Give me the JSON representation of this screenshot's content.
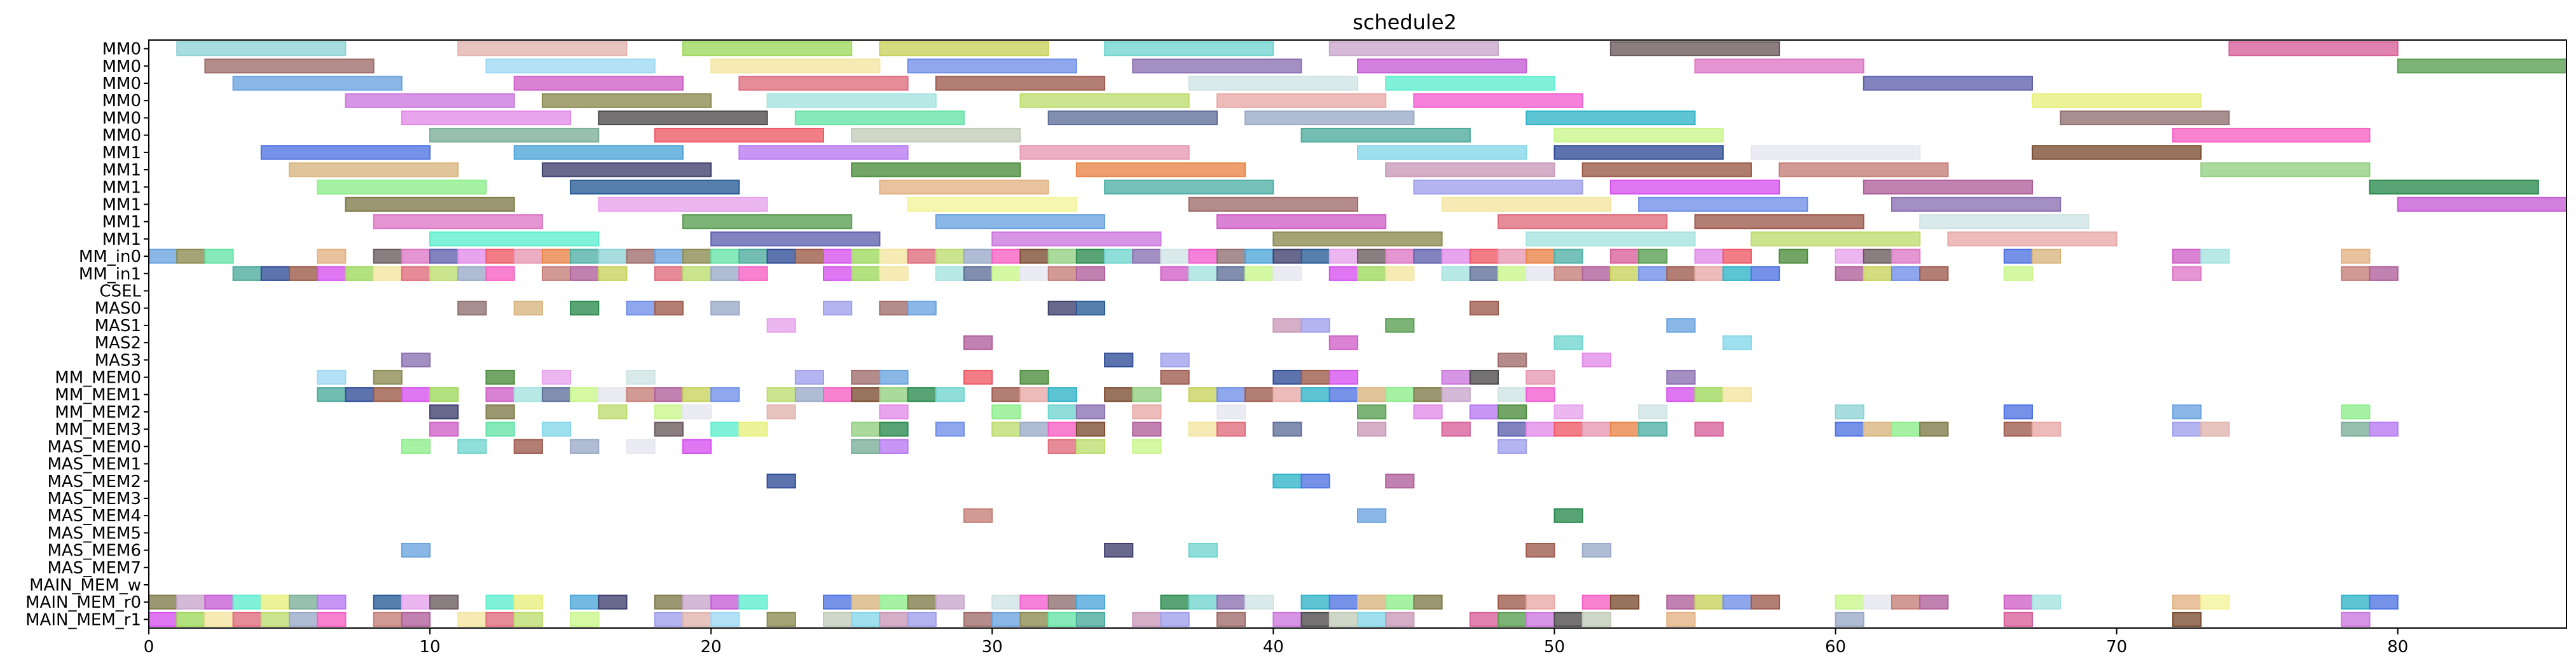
{
  "chart_data": {
    "type": "gantt",
    "title": "schedule2",
    "xlim": [
      0,
      86
    ],
    "xticks": [
      0,
      10,
      20,
      30,
      40,
      50,
      60,
      70,
      80
    ],
    "grid": false,
    "rows": [
      "MM0",
      "MM0",
      "MM0",
      "MM0",
      "MM0",
      "MM0",
      "MM1",
      "MM1",
      "MM1",
      "MM1",
      "MM1",
      "MM1",
      "MM_in0",
      "MM_in1",
      "CSEL",
      "MAS0",
      "MAS1",
      "MAS2",
      "MAS3",
      "MM_MEM0",
      "MM_MEM1",
      "MM_MEM2",
      "MM_MEM3",
      "MAS_MEM0",
      "MAS_MEM1",
      "MAS_MEM2",
      "MAS_MEM3",
      "MAS_MEM4",
      "MAS_MEM5",
      "MAS_MEM6",
      "MAS_MEM7",
      "MAIN_MEM_w",
      "MAIN_MEM_r0",
      "MAIN_MEM_r1"
    ],
    "palette": [
      "#8fd3d6",
      "#e2b4ae",
      "#9fd95c",
      "#c7d25b",
      "#6fd5cf",
      "#c9a7cc",
      "#6a5a5e",
      "#d8609a",
      "#9e6c6a",
      "#9dd8f2",
      "#f4e6a0",
      "#6f8ee8",
      "#8a6fb2",
      "#c65bd6",
      "#dd77c5",
      "#5a9e52",
      "#6aa3df",
      "#d05fc6",
      "#df6b7c",
      "#9e5b4e",
      "#cfe3e3",
      "#5eeecf",
      "#5e61ad",
      "#cc77de",
      "#8b8b51",
      "#a5e3e0",
      "#bddc6e",
      "#e8a9a6",
      "#f25dd0",
      "#e8f07c",
      "#e18ae8",
      "#4d4a4b",
      "#64e3a6",
      "#5e6e98",
      "#9aa9c6",
      "#2fb4c8",
      "#8f6f6f",
      "#7aae98",
      "#ef5865",
      "#c2ccb9",
      "#4caa9c",
      "#c8f68b",
      "#f75fc3",
      "#4e73e2",
      "#4da5d8",
      "#b778f2",
      "#e797b2",
      "#84d7ea",
      "#2e4b96",
      "#e6e6f0",
      "#7b4c2f",
      "#d9b57d",
      "#3e3f6c",
      "#4b8d3b",
      "#e88447",
      "#c998b8",
      "#9a5947",
      "#c47e76",
      "#92cf80",
      "#8dee8a",
      "#285b95",
      "#e3b283",
      "#4fb0a5",
      "#9f9fec",
      "#d651ee",
      "#b05f9b",
      "#2a8b4e",
      "#7f7a48",
      "#e7a2ec",
      "#f3f49a"
    ],
    "bars": [
      [
        0,
        1,
        7,
        0
      ],
      [
        0,
        11,
        17,
        1
      ],
      [
        0,
        19,
        25,
        2
      ],
      [
        0,
        26,
        32,
        3
      ],
      [
        0,
        34,
        40,
        4
      ],
      [
        0,
        42,
        48,
        5
      ],
      [
        0,
        52,
        58,
        6
      ],
      [
        0,
        74,
        80,
        7
      ],
      [
        1,
        2,
        8,
        8
      ],
      [
        1,
        12,
        18,
        9
      ],
      [
        1,
        20,
        26,
        10
      ],
      [
        1,
        27,
        33,
        11
      ],
      [
        1,
        35,
        41,
        12
      ],
      [
        1,
        43,
        49,
        13
      ],
      [
        1,
        55,
        61,
        14
      ],
      [
        1,
        80,
        86,
        15
      ],
      [
        2,
        3,
        9,
        16
      ],
      [
        2,
        13,
        19,
        17
      ],
      [
        2,
        21,
        27,
        18
      ],
      [
        2,
        28,
        34,
        19
      ],
      [
        2,
        37,
        43,
        20
      ],
      [
        2,
        44,
        50,
        21
      ],
      [
        2,
        61,
        67,
        22
      ],
      [
        3,
        7,
        13,
        23
      ],
      [
        3,
        14,
        20,
        24
      ],
      [
        3,
        22,
        28,
        25
      ],
      [
        3,
        31,
        37,
        26
      ],
      [
        3,
        38,
        44,
        27
      ],
      [
        3,
        45,
        51,
        28
      ],
      [
        3,
        67,
        73,
        29
      ],
      [
        4,
        9,
        15,
        30
      ],
      [
        4,
        16,
        22,
        31
      ],
      [
        4,
        23,
        29,
        32
      ],
      [
        4,
        32,
        38,
        33
      ],
      [
        4,
        39,
        45,
        34
      ],
      [
        4,
        49,
        55,
        35
      ],
      [
        4,
        68,
        74,
        36
      ],
      [
        5,
        10,
        16,
        37
      ],
      [
        5,
        18,
        24,
        38
      ],
      [
        5,
        25,
        31,
        39
      ],
      [
        5,
        41,
        47,
        40
      ],
      [
        5,
        50,
        56,
        41
      ],
      [
        5,
        72,
        79,
        42
      ],
      [
        6,
        4,
        10,
        43
      ],
      [
        6,
        13,
        19,
        44
      ],
      [
        6,
        21,
        27,
        45
      ],
      [
        6,
        31,
        37,
        46
      ],
      [
        6,
        43,
        49,
        47
      ],
      [
        6,
        50,
        56,
        48
      ],
      [
        6,
        57,
        63,
        49
      ],
      [
        6,
        67,
        73,
        50
      ],
      [
        7,
        5,
        11,
        51
      ],
      [
        7,
        14,
        20,
        52
      ],
      [
        7,
        25,
        31,
        53
      ],
      [
        7,
        33,
        39,
        54
      ],
      [
        7,
        44,
        50,
        55
      ],
      [
        7,
        51,
        57,
        56
      ],
      [
        7,
        58,
        64,
        57
      ],
      [
        7,
        73,
        79,
        58
      ],
      [
        8,
        6,
        12,
        59
      ],
      [
        8,
        15,
        21,
        60
      ],
      [
        8,
        26,
        32,
        61
      ],
      [
        8,
        34,
        40,
        62
      ],
      [
        8,
        45,
        51,
        63
      ],
      [
        8,
        52,
        58,
        64
      ],
      [
        8,
        61,
        67,
        65
      ],
      [
        8,
        79,
        85,
        66
      ],
      [
        9,
        7,
        13,
        67
      ],
      [
        9,
        16,
        22,
        68
      ],
      [
        9,
        27,
        33,
        69
      ],
      [
        9,
        37,
        43,
        8
      ],
      [
        9,
        46,
        52,
        10
      ],
      [
        9,
        53,
        59,
        11
      ],
      [
        9,
        62,
        68,
        12
      ],
      [
        9,
        80,
        86,
        13
      ],
      [
        10,
        8,
        14,
        14
      ],
      [
        10,
        19,
        25,
        15
      ],
      [
        10,
        28,
        34,
        16
      ],
      [
        10,
        38,
        44,
        17
      ],
      [
        10,
        48,
        54,
        18
      ],
      [
        10,
        55,
        61,
        19
      ],
      [
        10,
        63,
        69,
        20
      ],
      [
        11,
        10,
        16,
        21
      ],
      [
        11,
        20,
        26,
        22
      ],
      [
        11,
        30,
        36,
        23
      ],
      [
        11,
        40,
        46,
        24
      ],
      [
        11,
        49,
        55,
        25
      ],
      [
        11,
        57,
        63,
        26
      ],
      [
        11,
        64,
        70,
        27
      ]
    ],
    "cells": [
      [
        12,
        [
          0,
          1,
          2,
          6,
          8,
          9,
          10,
          11,
          12,
          13,
          14,
          15,
          16,
          17,
          18,
          19,
          20,
          21,
          22,
          23,
          24,
          25,
          26,
          27,
          28,
          29,
          30,
          31,
          32,
          33,
          34,
          35,
          36,
          37,
          38,
          39,
          40,
          41,
          42,
          43,
          44,
          45,
          46,
          47,
          48,
          49,
          50,
          52,
          53,
          55,
          56,
          58,
          60,
          61,
          62,
          66,
          67,
          72,
          73,
          78
        ]
      ],
      [
        13,
        [
          3,
          4,
          5,
          6,
          7,
          8,
          9,
          10,
          11,
          12,
          14,
          15,
          16,
          18,
          19,
          20,
          21,
          24,
          25,
          26,
          28,
          29,
          30,
          31,
          32,
          33,
          36,
          37,
          38,
          39,
          40,
          42,
          43,
          44,
          46,
          47,
          48,
          49,
          50,
          51,
          52,
          53,
          54,
          55,
          56,
          57,
          60,
          61,
          62,
          63,
          66,
          72,
          78,
          79
        ]
      ],
      [
        15,
        [
          11,
          13,
          15,
          17,
          18,
          20,
          24,
          26,
          27,
          32,
          33,
          47
        ]
      ],
      [
        16,
        [
          22,
          40,
          41,
          44,
          54
        ]
      ],
      [
        17,
        [
          29,
          42,
          50,
          56
        ]
      ],
      [
        18,
        [
          9,
          34,
          36,
          48,
          51
        ]
      ],
      [
        19,
        [
          6,
          8,
          12,
          14,
          17,
          23,
          25,
          26,
          29,
          31,
          36,
          40,
          41,
          42,
          46,
          47,
          49,
          54
        ]
      ],
      [
        20,
        [
          6,
          7,
          8,
          9,
          10,
          12,
          13,
          14,
          15,
          16,
          17,
          18,
          19,
          20,
          22,
          23,
          24,
          25,
          26,
          27,
          28,
          30,
          31,
          32,
          34,
          35,
          37,
          38,
          39,
          40,
          41,
          42,
          43,
          44,
          45,
          46,
          48,
          49,
          54,
          55,
          56
        ]
      ],
      [
        21,
        [
          10,
          12,
          16,
          18,
          19,
          22,
          26,
          30,
          32,
          33,
          35,
          38,
          43,
          45,
          47,
          48,
          50,
          53,
          60,
          66,
          72,
          78
        ]
      ],
      [
        22,
        [
          10,
          12,
          14,
          18,
          20,
          21,
          25,
          26,
          28,
          30,
          31,
          32,
          33,
          35,
          37,
          38,
          40,
          43,
          46,
          48,
          49,
          50,
          51,
          52,
          53,
          55,
          60,
          61,
          62,
          63,
          66,
          67,
          72,
          73,
          78,
          79
        ]
      ],
      [
        23,
        [
          9,
          11,
          13,
          15,
          17,
          19,
          25,
          26,
          32,
          33,
          35,
          48
        ]
      ],
      [
        25,
        [
          22,
          40,
          41,
          44
        ]
      ],
      [
        27,
        [
          29,
          43,
          50
        ]
      ],
      [
        29,
        [
          9,
          34,
          37,
          49,
          51
        ]
      ],
      [
        32,
        [
          0,
          1,
          2,
          3,
          4,
          5,
          6,
          8,
          9,
          10,
          12,
          13,
          15,
          16,
          18,
          19,
          20,
          21,
          24,
          25,
          26,
          27,
          28,
          30,
          31,
          32,
          33,
          36,
          37,
          38,
          39,
          41,
          42,
          43,
          44,
          45,
          48,
          49,
          51,
          52,
          54,
          55,
          56,
          57,
          60,
          61,
          62,
          63,
          66,
          67,
          72,
          73,
          78,
          79
        ]
      ],
      [
        33,
        [
          0,
          1,
          2,
          3,
          4,
          5,
          6,
          8,
          9,
          11,
          12,
          13,
          15,
          18,
          19,
          20,
          22,
          24,
          25,
          26,
          27,
          29,
          30,
          31,
          32,
          33,
          35,
          36,
          38,
          40,
          41,
          42,
          43,
          44,
          47,
          48,
          49,
          50,
          51,
          54,
          60,
          66,
          72,
          78
        ]
      ]
    ]
  }
}
